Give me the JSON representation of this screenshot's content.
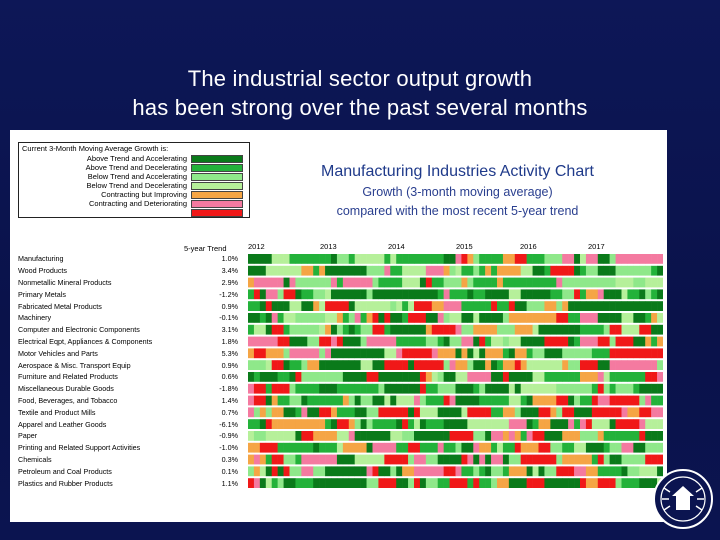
{
  "slide": {
    "title_line1": "The industrial sector output growth",
    "title_line2": "has been strong over the past several months"
  },
  "legend": {
    "title": "Current 3-Month Moving Average Growth is:",
    "items": [
      {
        "label": "Above Trend and Accelerating",
        "color": "#0a7a1a"
      },
      {
        "label": "Above Trend and Decelerating",
        "color": "#23b23a"
      },
      {
        "label": "Below Trend and Accelerating",
        "color": "#8fe88a"
      },
      {
        "label": "Below Trend and Decelerating",
        "color": "#b6f09a"
      },
      {
        "label": "Contracting but Improving",
        "color": "#f5a545"
      },
      {
        "label": "Contracting and Deteriorating",
        "color": "#f47aa0"
      },
      {
        "label": "",
        "color": "#f01818"
      }
    ]
  },
  "chart_data": {
    "type": "heatmap",
    "title": "Manufacturing Industries Activity Chart",
    "subtitle_line1": "Growth (3-month moving average)",
    "subtitle_line2": "compared with the most recent 5-year trend",
    "trend_header": "5-year Trend",
    "years": [
      "2012",
      "2013",
      "2014",
      "2015",
      "2016",
      "2017"
    ],
    "months_count": 70,
    "industries": [
      {
        "name": "Manufacturing",
        "trend": "1.0%"
      },
      {
        "name": "Wood Products",
        "trend": "3.4%"
      },
      {
        "name": "Nonmetallic Mineral Products",
        "trend": "2.9%"
      },
      {
        "name": "Primary Metals",
        "trend": "-1.2%"
      },
      {
        "name": "Fabricated Metal Products",
        "trend": "0.9%"
      },
      {
        "name": "Machinery",
        "trend": "-0.1%"
      },
      {
        "name": "Computer and Electronic Components",
        "trend": "3.1%"
      },
      {
        "name": "Electrical Eqpt, Appliances & Components",
        "trend": "1.8%"
      },
      {
        "name": "Motor Vehicles and Parts",
        "trend": "5.3%"
      },
      {
        "name": "Aerospace & Misc. Transport Equip",
        "trend": "0.9%"
      },
      {
        "name": "Furniture and Related Products",
        "trend": "0.6%"
      },
      {
        "name": "Miscellaneous Durable Goods",
        "trend": "-1.8%"
      },
      {
        "name": "Food, Beverages, and Tobacco",
        "trend": "1.4%"
      },
      {
        "name": "Textile and Product Mills",
        "trend": "0.7%"
      },
      {
        "name": "Apparel and Leather Goods",
        "trend": "-6.1%"
      },
      {
        "name": "Paper",
        "trend": "-0.9%"
      },
      {
        "name": "Printing and Related Support Activities",
        "trend": "-1.0%"
      },
      {
        "name": "Chemicals",
        "trend": "0.3%"
      },
      {
        "name": "Petroleum and Coal Products",
        "trend": "0.1%"
      },
      {
        "name": "Plastics and Rubber Products",
        "trend": "1.1%"
      }
    ]
  }
}
